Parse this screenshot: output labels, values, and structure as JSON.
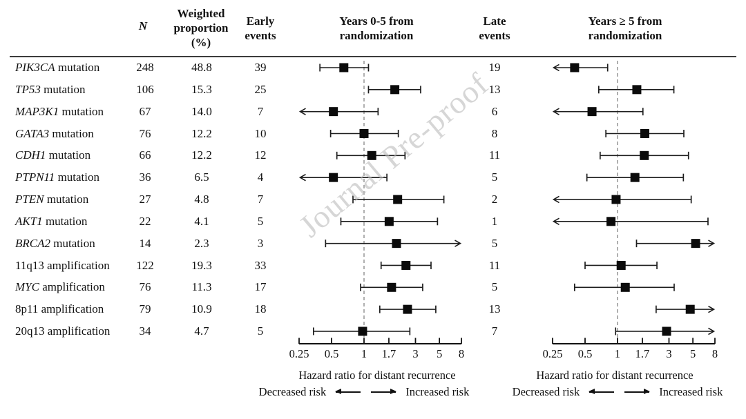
{
  "watermark": "Journal Pre-proof",
  "header": {
    "n": "N",
    "weighted_proportion": "Weighted\nproportion\n(%)",
    "early_events": "Early\nevents",
    "early_plot_title": "Years 0-5 from\nrandomization",
    "late_events": "Late\nevents",
    "late_plot_title": "Years ≥ 5 from\nrandomization"
  },
  "rows": [
    {
      "gene": "PIK3CA",
      "italic": true,
      "suffix": " mutation",
      "n": "248",
      "weighted_pct": "48.8",
      "early_events": "39",
      "late_events": "19"
    },
    {
      "gene": "TP53",
      "italic": true,
      "suffix": " mutation",
      "n": "106",
      "weighted_pct": "15.3",
      "early_events": "25",
      "late_events": "13"
    },
    {
      "gene": "MAP3K1",
      "italic": true,
      "suffix": " mutation",
      "n": "67",
      "weighted_pct": "14.0",
      "early_events": "7",
      "late_events": "6"
    },
    {
      "gene": "GATA3",
      "italic": true,
      "suffix": " mutation",
      "n": "76",
      "weighted_pct": "12.2",
      "early_events": "10",
      "late_events": "8"
    },
    {
      "gene": "CDH1",
      "italic": true,
      "suffix": " mutation",
      "n": "66",
      "weighted_pct": "12.2",
      "early_events": "12",
      "late_events": "11"
    },
    {
      "gene": "PTPN11",
      "italic": true,
      "suffix": " mutation",
      "n": "36",
      "weighted_pct": "6.5",
      "early_events": "4",
      "late_events": "5"
    },
    {
      "gene": "PTEN",
      "italic": true,
      "suffix": " mutation",
      "n": "27",
      "weighted_pct": "4.8",
      "early_events": "7",
      "late_events": "2"
    },
    {
      "gene": "AKT1",
      "italic": true,
      "suffix": " mutation",
      "n": "22",
      "weighted_pct": "4.1",
      "early_events": "5",
      "late_events": "1"
    },
    {
      "gene": "BRCA2",
      "italic": true,
      "suffix": " mutation",
      "n": "14",
      "weighted_pct": "2.3",
      "early_events": "3",
      "late_events": "5"
    },
    {
      "gene": "11q13",
      "italic": false,
      "suffix": " amplification",
      "n": "122",
      "weighted_pct": "19.3",
      "early_events": "33",
      "late_events": "11"
    },
    {
      "gene": "MYC",
      "italic": true,
      "suffix": " amplification",
      "n": "76",
      "weighted_pct": "11.3",
      "early_events": "17",
      "late_events": "5"
    },
    {
      "gene": "8p11",
      "italic": false,
      "suffix": " amplification",
      "n": "79",
      "weighted_pct": "10.9",
      "early_events": "18",
      "late_events": "13"
    },
    {
      "gene": "20q13",
      "italic": false,
      "suffix": " amplification",
      "n": "34",
      "weighted_pct": "4.7",
      "early_events": "5",
      "late_events": "7"
    }
  ],
  "chart_data": [
    {
      "type": "forest",
      "title": "Years 0-5 from randomization",
      "xlabel": "Hazard ratio for distant recurrence",
      "x_scale": "log",
      "xlim": [
        0.25,
        8
      ],
      "ticks": [
        "0.25",
        "0.5",
        "1",
        "1.7",
        "3",
        "5",
        "8"
      ],
      "ref_line": 1,
      "risk_labels": {
        "decreased": "Decreased risk",
        "increased": "Increased risk"
      },
      "points": [
        {
          "label": "PIK3CA mutation",
          "hr": 0.65,
          "lo": 0.39,
          "hi": 1.1,
          "lo_arrow": false,
          "hi_arrow": false
        },
        {
          "label": "TP53 mutation",
          "hr": 1.93,
          "lo": 1.1,
          "hi": 3.35,
          "lo_arrow": false,
          "hi_arrow": false
        },
        {
          "label": "MAP3K1 mutation",
          "hr": 0.52,
          "lo": 0.25,
          "hi": 1.35,
          "lo_arrow": true,
          "hi_arrow": false
        },
        {
          "label": "GATA3 mutation",
          "hr": 1.0,
          "lo": 0.49,
          "hi": 2.08,
          "lo_arrow": false,
          "hi_arrow": false
        },
        {
          "label": "CDH1 mutation",
          "hr": 1.18,
          "lo": 0.56,
          "hi": 2.4,
          "lo_arrow": false,
          "hi_arrow": false
        },
        {
          "label": "PTPN11 mutation",
          "hr": 0.52,
          "lo": 0.25,
          "hi": 1.63,
          "lo_arrow": true,
          "hi_arrow": false
        },
        {
          "label": "PTEN mutation",
          "hr": 2.05,
          "lo": 0.79,
          "hi": 5.5,
          "lo_arrow": false,
          "hi_arrow": false
        },
        {
          "label": "AKT1 mutation",
          "hr": 1.71,
          "lo": 0.61,
          "hi": 4.8,
          "lo_arrow": false,
          "hi_arrow": false
        },
        {
          "label": "BRCA2 mutation",
          "hr": 2.0,
          "lo": 0.44,
          "hi": 8,
          "lo_arrow": false,
          "hi_arrow": true
        },
        {
          "label": "11q13 amplification",
          "hr": 2.45,
          "lo": 1.44,
          "hi": 4.18,
          "lo_arrow": false,
          "hi_arrow": false
        },
        {
          "label": "MYC amplification",
          "hr": 1.8,
          "lo": 0.93,
          "hi": 3.5,
          "lo_arrow": false,
          "hi_arrow": false
        },
        {
          "label": "8p11 amplification",
          "hr": 2.53,
          "lo": 1.4,
          "hi": 4.63,
          "lo_arrow": false,
          "hi_arrow": false
        },
        {
          "label": "20q13 amplification",
          "hr": 0.97,
          "lo": 0.34,
          "hi": 2.66,
          "lo_arrow": false,
          "hi_arrow": false
        }
      ]
    },
    {
      "type": "forest",
      "title": "Years ≥ 5 from randomization",
      "xlabel": "Hazard ratio for distant recurrence",
      "x_scale": "log",
      "xlim": [
        0.25,
        8
      ],
      "ticks": [
        "0.25",
        "0.5",
        "1",
        "1.7",
        "3",
        "5",
        "8"
      ],
      "ref_line": 1,
      "risk_labels": {
        "decreased": "Decreased risk",
        "increased": "Increased risk"
      },
      "points": [
        {
          "label": "PIK3CA mutation",
          "hr": 0.4,
          "lo": 0.25,
          "hi": 0.81,
          "lo_arrow": true,
          "hi_arrow": false
        },
        {
          "label": "TP53 mutation",
          "hr": 1.51,
          "lo": 0.67,
          "hi": 3.33,
          "lo_arrow": false,
          "hi_arrow": false
        },
        {
          "label": "MAP3K1 mutation",
          "hr": 0.58,
          "lo": 0.25,
          "hi": 1.72,
          "lo_arrow": true,
          "hi_arrow": false
        },
        {
          "label": "GATA3 mutation",
          "hr": 1.79,
          "lo": 0.78,
          "hi": 4.12,
          "lo_arrow": false,
          "hi_arrow": false
        },
        {
          "label": "CDH1 mutation",
          "hr": 1.77,
          "lo": 0.69,
          "hi": 4.55,
          "lo_arrow": false,
          "hi_arrow": false
        },
        {
          "label": "PTPN11 mutation",
          "hr": 1.45,
          "lo": 0.52,
          "hi": 4.08,
          "lo_arrow": false,
          "hi_arrow": false
        },
        {
          "label": "PTEN mutation",
          "hr": 0.97,
          "lo": 0.25,
          "hi": 4.82,
          "lo_arrow": true,
          "hi_arrow": false
        },
        {
          "label": "AKT1 mutation",
          "hr": 0.87,
          "lo": 0.25,
          "hi": 6.9,
          "lo_arrow": true,
          "hi_arrow": false
        },
        {
          "label": "BRCA2 mutation",
          "hr": 5.3,
          "lo": 1.5,
          "hi": 8,
          "lo_arrow": false,
          "hi_arrow": true
        },
        {
          "label": "11q13 amplification",
          "hr": 1.08,
          "lo": 0.5,
          "hi": 2.32,
          "lo_arrow": false,
          "hi_arrow": false
        },
        {
          "label": "MYC amplification",
          "hr": 1.18,
          "lo": 0.4,
          "hi": 3.35,
          "lo_arrow": false,
          "hi_arrow": false
        },
        {
          "label": "8p11 amplification",
          "hr": 4.72,
          "lo": 2.28,
          "hi": 8,
          "lo_arrow": false,
          "hi_arrow": true
        },
        {
          "label": "20q13 amplification",
          "hr": 2.85,
          "lo": 0.96,
          "hi": 8,
          "lo_arrow": false,
          "hi_arrow": true
        }
      ]
    }
  ]
}
